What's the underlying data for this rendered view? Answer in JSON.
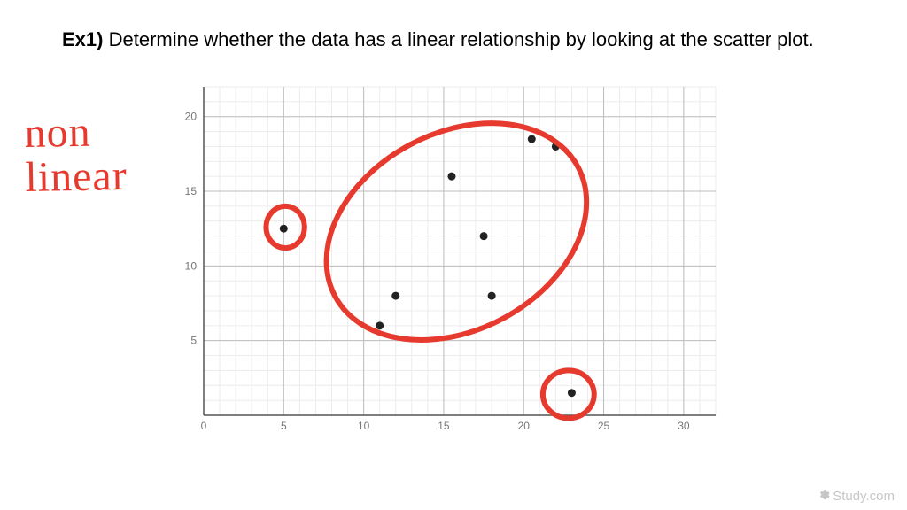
{
  "question": {
    "label": "Ex1)",
    "text": "Determine whether the data has a linear relationship by looking at the scatter plot."
  },
  "annotation": {
    "line1": "non",
    "line2": "linear",
    "color": "#e63a2e",
    "fontsize_pt": 36
  },
  "chart": {
    "type": "scatter",
    "xlim": [
      0,
      32
    ],
    "ylim": [
      0,
      22
    ],
    "xtick_step": 5,
    "ytick_step": 5,
    "xtick_labels": [
      "0",
      "5",
      "10",
      "15",
      "20",
      "25",
      "30"
    ],
    "ytick_labels": [
      "5",
      "10",
      "15",
      "20"
    ],
    "minor_step": 1,
    "point_color": "#222222",
    "point_radius": 4.5,
    "axis_color": "#555555",
    "major_grid_color": "#bdbdbd",
    "minor_grid_color": "#ececec",
    "background_color": "#ffffff",
    "tick_label_color": "#777777",
    "tick_label_fontsize": 12,
    "points": [
      {
        "x": 5,
        "y": 12.5
      },
      {
        "x": 11,
        "y": 6
      },
      {
        "x": 12,
        "y": 8
      },
      {
        "x": 15.5,
        "y": 16
      },
      {
        "x": 17.5,
        "y": 12
      },
      {
        "x": 18,
        "y": 8
      },
      {
        "x": 20.5,
        "y": 18.5
      },
      {
        "x": 22,
        "y": 18
      },
      {
        "x": 23,
        "y": 1.5
      }
    ],
    "annotations": [
      {
        "type": "ellipse",
        "cx_data": 15.8,
        "cy_data": 12.3,
        "rx_data": 8.6,
        "ry_data": 6.6,
        "rotate_deg": -28,
        "stroke": "#e63a2e",
        "stroke_width": 6,
        "fill": "none"
      },
      {
        "type": "ellipse",
        "cx_data": 5.1,
        "cy_data": 12.6,
        "rx_data": 1.2,
        "ry_data": 1.4,
        "rotate_deg": 0,
        "stroke": "#e63a2e",
        "stroke_width": 6,
        "fill": "none"
      },
      {
        "type": "ellipse",
        "cx_data": 22.8,
        "cy_data": 1.4,
        "rx_data": 1.6,
        "ry_data": 1.6,
        "rotate_deg": 0,
        "stroke": "#e63a2e",
        "stroke_width": 6,
        "fill": "none"
      }
    ]
  },
  "watermark": {
    "text": "Study.com",
    "color": "#c7c7c7"
  }
}
